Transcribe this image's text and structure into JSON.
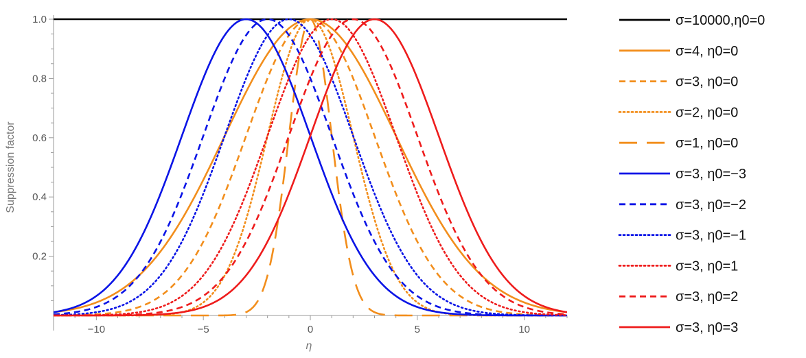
{
  "chart_data": {
    "type": "line",
    "xlabel": "η",
    "ylabel": "Suppression factor",
    "xlim": [
      -12,
      12
    ],
    "ylim": [
      0,
      1.0
    ],
    "x_ticks": [
      -10,
      -5,
      0,
      5,
      10
    ],
    "x_tick_labels": [
      "−10",
      "−5",
      "0",
      "5",
      "10"
    ],
    "y_ticks": [
      0.2,
      0.4,
      0.6,
      0.8,
      1.0
    ],
    "y_tick_labels": [
      "0.2",
      "0.4",
      "0.6",
      "0.8",
      "1.0"
    ],
    "series": [
      {
        "name": "σ=10000,η0=0",
        "sigma": 10000,
        "eta0": 0,
        "color": "#000000",
        "dash": "solid"
      },
      {
        "name": "σ=4, η0=0",
        "sigma": 4,
        "eta0": 0,
        "color": "#f28e1c",
        "dash": "solid"
      },
      {
        "name": "σ=3, η0=0",
        "sigma": 3,
        "eta0": 0,
        "color": "#f28e1c",
        "dash": "dashed"
      },
      {
        "name": "σ=2, η0=0",
        "sigma": 2,
        "eta0": 0,
        "color": "#f28e1c",
        "dash": "dotted"
      },
      {
        "name": "σ=1, η0=0",
        "sigma": 1,
        "eta0": 0,
        "color": "#f28e1c",
        "dash": "longdash"
      },
      {
        "name": "σ=3, η0=−3",
        "sigma": 3,
        "eta0": -3,
        "color": "#0a14e6",
        "dash": "solid"
      },
      {
        "name": "σ=3, η0=−2",
        "sigma": 3,
        "eta0": -2,
        "color": "#0a14e6",
        "dash": "dashed"
      },
      {
        "name": "σ=3, η0=−1",
        "sigma": 3,
        "eta0": -1,
        "color": "#0a14e6",
        "dash": "dotted"
      },
      {
        "name": "σ=3, η0=1",
        "sigma": 3,
        "eta0": 1,
        "color": "#ee1c1c",
        "dash": "dotted"
      },
      {
        "name": "σ=3, η0=2",
        "sigma": 3,
        "eta0": 2,
        "color": "#ee1c1c",
        "dash": "dashed"
      },
      {
        "name": "σ=3, η0=3",
        "sigma": 3,
        "eta0": 3,
        "color": "#ee1c1c",
        "dash": "solid"
      }
    ],
    "legend_position": "right",
    "grid": false
  }
}
